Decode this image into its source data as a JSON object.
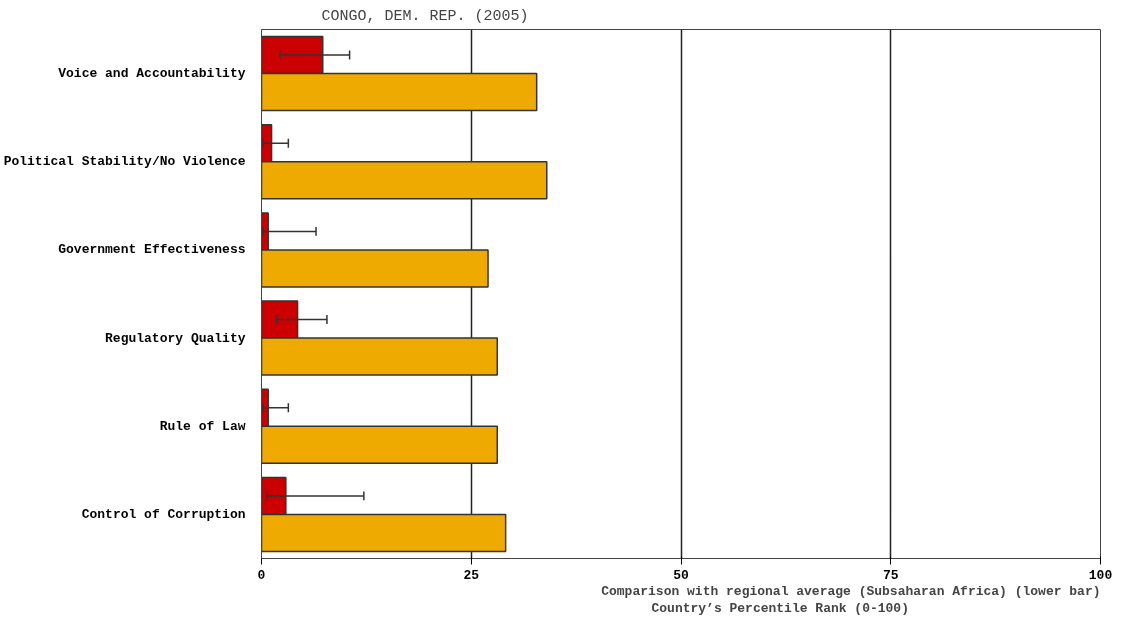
{
  "chart_data": {
    "type": "bar",
    "orientation": "horizontal",
    "title": "CONGO, DEM. REP. (2005)",
    "xlabel": "Country’s Percentile Rank (0-100)",
    "annotations": [
      "Comparison with regional average (Subsaharan Africa) (lower bar)"
    ],
    "categories": [
      "Voice and Accountability",
      "Political Stability/No Violence",
      "Government Effectiveness",
      "Regulatory Quality",
      "Rule of Law",
      "Control of Corruption"
    ],
    "series": [
      {
        "color": "#cc0000",
        "values": [
          7.3,
          1.2,
          0.8,
          4.3,
          0.8,
          2.9
        ],
        "errors": [
          [
            2.2,
            10.5
          ],
          [
            0.2,
            3.2
          ],
          [
            0.2,
            6.5
          ],
          [
            1.8,
            7.8
          ],
          [
            0.2,
            3.2
          ],
          [
            0.7,
            12.2
          ]
        ]
      },
      {
        "color": "#eeaa00",
        "values": [
          32.8,
          34.0,
          27.0,
          28.1,
          28.1,
          29.1
        ]
      }
    ],
    "xlim": [
      0,
      100
    ],
    "xticks": [
      0,
      25,
      50,
      75,
      100
    ],
    "grid": "x"
  }
}
